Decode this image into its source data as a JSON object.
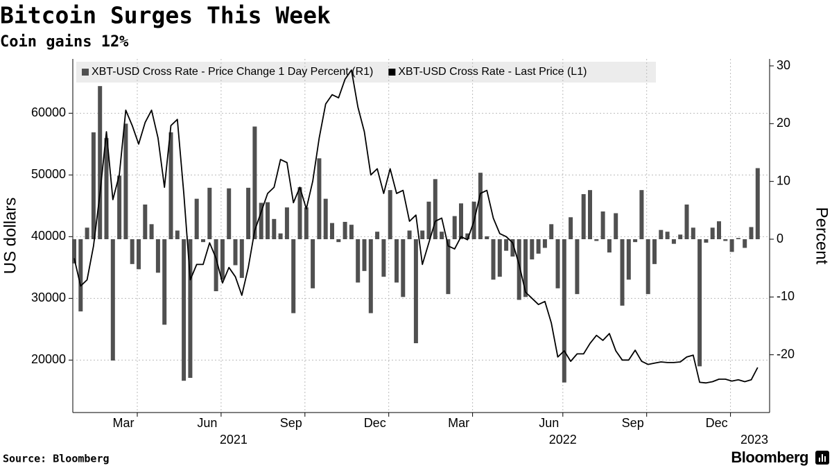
{
  "chart_data": {
    "type": "bar",
    "title": "Bitcoin Surges This Week",
    "subtitle": "Coin gains 12%",
    "ylabel": "US dollars",
    "y2label": "Percent",
    "source": "Source: Bloomberg",
    "brand": "Bloomberg",
    "categories": [
      null,
      null,
      null,
      null,
      null,
      null,
      null,
      null,
      null,
      null,
      "Mar",
      null,
      null,
      null,
      null,
      null,
      null,
      null,
      null,
      null,
      null,
      null,
      null,
      "Jun",
      null,
      null,
      null,
      null,
      null,
      null,
      null,
      null,
      null,
      null,
      null,
      null,
      "Sep",
      null,
      null,
      null,
      null,
      null,
      null,
      null,
      null,
      null,
      null,
      null,
      null,
      "Dec",
      null,
      null,
      null,
      null,
      null,
      null,
      null,
      null,
      null,
      null,
      null,
      null,
      "Mar",
      null,
      null,
      null,
      null,
      null,
      null,
      null,
      null,
      null,
      null,
      null,
      null,
      null,
      "Jun",
      null,
      null,
      null,
      null,
      null,
      null,
      null,
      null,
      null,
      null,
      null,
      null,
      "Sep",
      null,
      null,
      null,
      null,
      null,
      null,
      null,
      null,
      null,
      null,
      null,
      null,
      "Dec",
      null,
      null,
      null,
      null
    ],
    "year_labels": [
      "2021",
      "2022",
      "2023"
    ],
    "ylim": [
      11500,
      68800
    ],
    "yticks": [
      20000,
      30000,
      40000,
      50000,
      60000
    ],
    "y2lim": [
      -30,
      31.2
    ],
    "y2ticks": [
      -20,
      -10,
      0,
      10,
      20,
      30
    ],
    "grid": true,
    "legend": "top",
    "series": [
      {
        "name": "XBT-USD Cross Rate - Price Change 1 Day Percent (R1)",
        "type": "bar",
        "axis": "y2",
        "color": "#505050",
        "values": [
          -4.2,
          -12.5,
          2,
          18.5,
          26.5,
          17.5,
          -21,
          11,
          20,
          -4.3,
          -5.2,
          6,
          2.6,
          -5.8,
          -14.8,
          18.5,
          1.5,
          -24.5,
          -24,
          7,
          -0.5,
          8.9,
          -9,
          -7,
          8.8,
          -4.5,
          -6.7,
          8.9,
          19.5,
          6.3,
          6.4,
          3.5,
          1,
          5.5,
          -12.8,
          9,
          5.5,
          -8.5,
          14,
          7,
          2.8,
          -0.5,
          3,
          2.5,
          -7.5,
          -5.5,
          -12.8,
          1.3,
          -6.5,
          8.5,
          -7.5,
          -10,
          1.5,
          -18,
          1.5,
          6.5,
          10.4,
          1.3,
          -9.5,
          4,
          6.2,
          1,
          6.5,
          11.5,
          0.5,
          -7,
          -6.5,
          -2,
          -3,
          -10.5,
          -10,
          -3.5,
          -2.5,
          -1.5,
          2.6,
          -8.5,
          -24.8,
          3.8,
          -9.5,
          7.8,
          8.5,
          -0.3,
          4.8,
          -2.3,
          4.5,
          -11.5,
          -7,
          -0.5,
          8.5,
          -9.5,
          -4.3,
          1.6,
          1.3,
          -0.8,
          0.8,
          6,
          2,
          -22,
          -0.6,
          2,
          3.1,
          -0.3,
          -2.2,
          0.2,
          -1.5,
          2.1,
          12.3
        ]
      },
      {
        "name": "XBT-USD Cross Rate - Last Price (L1)",
        "type": "line",
        "axis": "y",
        "color": "#000000",
        "values": [
          36500,
          32000,
          33000,
          38500,
          47000,
          57000,
          46000,
          50000,
          60500,
          58000,
          55000,
          58500,
          60500,
          56000,
          48000,
          58000,
          59000,
          47000,
          33000,
          35500,
          35500,
          39000,
          36500,
          32500,
          35000,
          33500,
          30500,
          35000,
          41000,
          44000,
          47000,
          48000,
          52500,
          52000,
          45500,
          48000,
          44500,
          49000,
          56000,
          61500,
          63000,
          62500,
          65500,
          67000,
          61000,
          57000,
          50000,
          51000,
          47000,
          51000,
          47000,
          47500,
          42500,
          43500,
          35500,
          39000,
          42500,
          43000,
          38500,
          38000,
          40000,
          39500,
          42500,
          47000,
          47500,
          43000,
          40500,
          40000,
          39000,
          35500,
          31000,
          30000,
          29000,
          29500,
          26000,
          20500,
          21500,
          19800,
          21000,
          21000,
          22700,
          24000,
          23200,
          24300,
          21500,
          20000,
          20000,
          21600,
          19800,
          19300,
          19500,
          19700,
          19600,
          19600,
          19700,
          20500,
          20800,
          16400,
          16300,
          16500,
          16900,
          16900,
          16600,
          16800,
          16500,
          16800,
          18800
        ]
      }
    ]
  }
}
